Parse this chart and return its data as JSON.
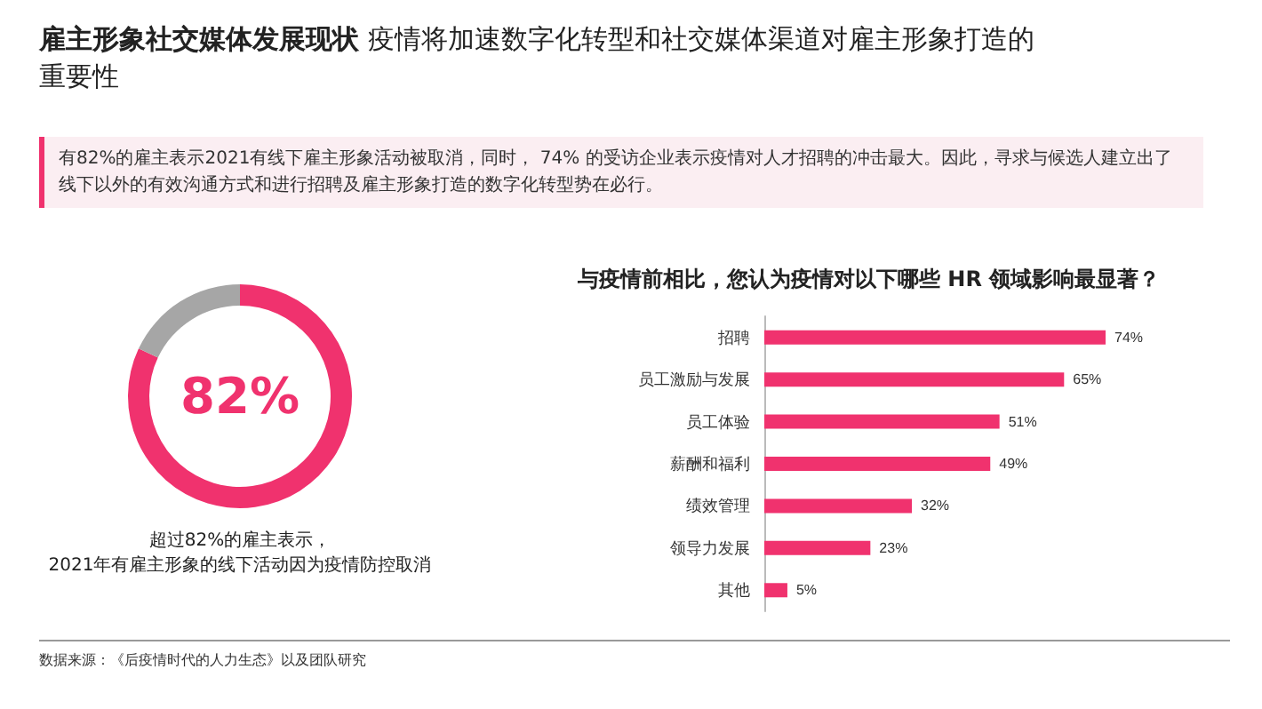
{
  "chart_data": [
    {
      "type": "donut",
      "title": "雇主形象社交媒体发展现状",
      "subtitle": "疫情将加速数字化转型和社交媒体渠道对雇主形象打造的重要性",
      "categories": [
        null,
        null
      ],
      "values": [
        82,
        18
      ],
      "colors": [
        "#f0326e",
        "#a6a6a6"
      ],
      "value_labels": [
        "82%",
        null
      ],
      "annotations": [
        "有82%的雇主表示2021有线下雇主形象活动被取消，同时， 74% 的受访企业表示疫情对人才招聘的冲击最大。因此，寻求与候选人建立出了线下以外的有效沟通方式和进行招聘及雇主形象打造的数字化转型势在必行。",
        "超过82%的雇主表示，\n2021年有雇主形象的线下活动因为疫情防控取消",
        "数据来源：《后疫情时代的人力生态》以及团队研究"
      ]
    },
    {
      "type": "bar",
      "orientation": "horizontal",
      "title": "与疫情前相比，您认为疫情对以下哪些 HR 领域影响最显著？",
      "categories": [
        "招聘",
        "员工激励与发展",
        "员工体验",
        "薪酬和福利",
        "绩效管理",
        "领导力发展",
        "其他"
      ],
      "values": [
        74,
        65,
        51,
        49,
        32,
        23,
        5
      ],
      "value_labels": [
        "74%",
        "65%",
        "51%",
        "49%",
        "32%",
        "23%",
        "5%"
      ],
      "color": "#f0326e"
    }
  ]
}
